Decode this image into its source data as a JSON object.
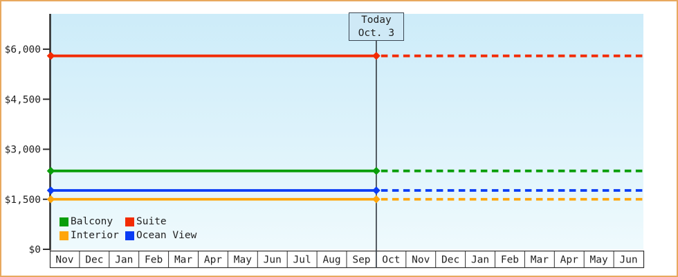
{
  "chart_data": {
    "type": "line",
    "title": "",
    "x_categories": [
      "Nov",
      "Dec",
      "Jan",
      "Feb",
      "Mar",
      "Apr",
      "May",
      "Jun",
      "Jul",
      "Aug",
      "Sep",
      "Oct",
      "Nov",
      "Dec",
      "Jan",
      "Feb",
      "Mar",
      "Apr",
      "May",
      "Jun"
    ],
    "ylim": [
      0,
      7060
    ],
    "y_ticks": [
      {
        "value": 0,
        "label": "$0"
      },
      {
        "value": 1500,
        "label": "$1,500"
      },
      {
        "value": 3000,
        "label": "$3,000"
      },
      {
        "value": 4500,
        "label": "$4,500"
      },
      {
        "value": 6000,
        "label": "$6,000"
      }
    ],
    "series": [
      {
        "name": "Balcony",
        "color": "#0a9e0a",
        "value": 2350
      },
      {
        "name": "Suite",
        "color": "#f32b01",
        "value": 5800
      },
      {
        "name": "Interior",
        "color": "#ffa60a",
        "value": 1500
      },
      {
        "name": "Ocean View",
        "color": "#0a3cf5",
        "value": 1765
      }
    ],
    "line_style": {
      "before_today": "solid",
      "after_today": "dashed",
      "marker": "diamond"
    },
    "today": {
      "line1": "Today",
      "line2": "Oct. 3",
      "boundary_month_index": 11
    },
    "legend": {
      "position": "bottom-left",
      "columns": 2,
      "entries": [
        "Balcony",
        "Suite",
        "Interior",
        "Ocean View"
      ]
    },
    "grid": false
  },
  "styles": {
    "frame_border": "#e8a85e",
    "axis_color": "#2f2f2f",
    "text_color": "#222222",
    "plot_bg_top": "#cdecf9",
    "plot_bg_mid": "#def3fb",
    "plot_bg_bottom": "#effafd",
    "today_box_fill": "#cfe9f6",
    "today_box_border": "#3a4652",
    "month_row_bg": "#ffffff"
  }
}
